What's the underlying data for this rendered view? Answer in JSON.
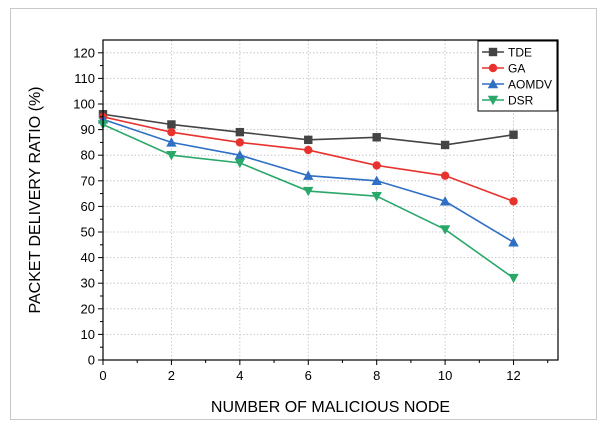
{
  "chart_data": {
    "type": "line",
    "xlabel": "NUMBER OF MALICIOUS NODE",
    "ylabel": "PACKET DELIVERY RATIO (%)",
    "x": [
      0,
      2,
      4,
      6,
      8,
      10,
      12
    ],
    "xlim": [
      0,
      13.3
    ],
    "ylim": [
      0,
      125
    ],
    "xticks": [
      0,
      2,
      4,
      6,
      8,
      10,
      12
    ],
    "yticks": [
      0,
      10,
      20,
      30,
      40,
      50,
      60,
      70,
      80,
      90,
      100,
      110,
      120
    ],
    "grid": true,
    "legend_position": "top-right",
    "series": [
      {
        "name": "TDE",
        "color": "#444444",
        "marker": "square",
        "values": [
          96,
          92,
          89,
          86,
          87,
          84,
          88
        ]
      },
      {
        "name": "GA",
        "color": "#e8322e",
        "marker": "circle",
        "values": [
          95,
          89,
          85,
          82,
          76,
          72,
          62
        ]
      },
      {
        "name": "AOMDV",
        "color": "#2f6fc4",
        "marker": "triangle-up",
        "values": [
          94,
          85,
          80,
          72,
          70,
          62,
          46
        ]
      },
      {
        "name": "DSR",
        "color": "#2aa86a",
        "marker": "triangle-down",
        "values": [
          92,
          80,
          77,
          66,
          64,
          51,
          32
        ]
      }
    ]
  }
}
